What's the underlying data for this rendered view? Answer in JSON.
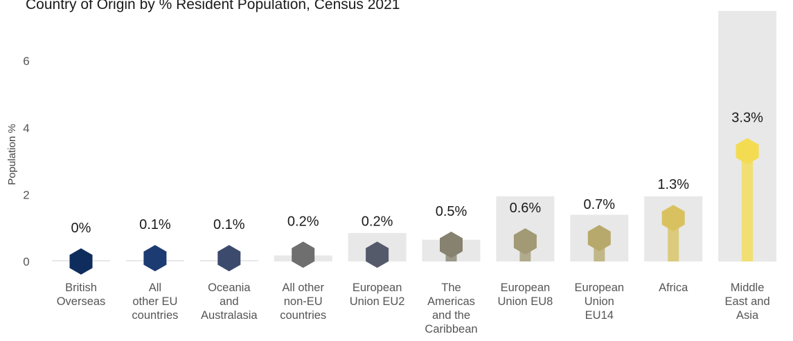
{
  "chart_data": {
    "type": "bar",
    "title": "Country of Origin by % Resident Population, Census 2021",
    "ylabel": "Population %",
    "xlabel": "",
    "ylim": [
      -0.2,
      7.6
    ],
    "yticks": [
      0,
      2,
      4,
      6
    ],
    "grid": false,
    "legend": "none",
    "categories": [
      [
        "British",
        "Overseas"
      ],
      [
        "All",
        "other EU",
        "countries"
      ],
      [
        "Oceania",
        "and",
        "Australasia"
      ],
      [
        "All other",
        "non-EU",
        "countries"
      ],
      [
        "European",
        "Union EU2"
      ],
      [
        "The",
        "Americas",
        "and the",
        "Caribbean"
      ],
      [
        "European",
        "Union EU8"
      ],
      [
        "European",
        "Union",
        "EU14"
      ],
      [
        "Africa"
      ],
      [
        "Middle",
        "East and",
        "Asia"
      ]
    ],
    "series": [
      {
        "values": [
          0.0,
          0.1,
          0.1,
          0.2,
          0.2,
          0.5,
          0.6,
          0.7,
          1.3,
          3.3
        ],
        "labels": [
          "0%",
          "0.1%",
          "0.1%",
          "0.2%",
          "0.2%",
          "0.5%",
          "0.6%",
          "0.7%",
          "1.3%",
          "3.3%"
        ]
      },
      {
        "values": [
          0.0,
          0.03,
          0.03,
          0.18,
          0.85,
          0.65,
          1.95,
          1.4,
          1.95,
          7.5
        ]
      }
    ],
    "colors": [
      "#0f2d5c",
      "#1c3b72",
      "#3c4a6d",
      "#6f6f6f",
      "#555a6b",
      "#86826f",
      "#a19a74",
      "#b7a96c",
      "#d9c15f",
      "#f4dc52"
    ],
    "background_bar_color": "#e8e8e8"
  }
}
